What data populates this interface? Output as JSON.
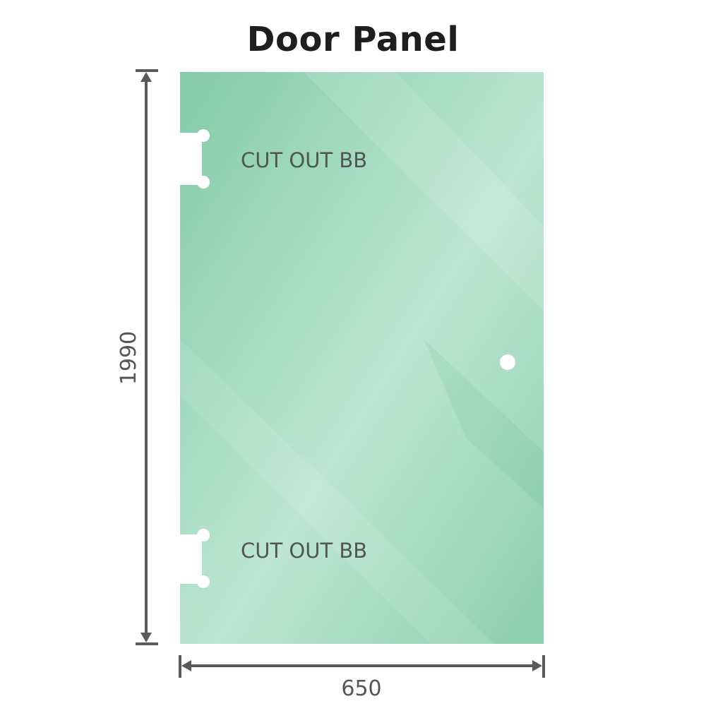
{
  "title": "Door Panel",
  "panel": {
    "color_top": "#83cba6",
    "color_mid": "#bde6d3",
    "color_bottom": "#8ccfab",
    "cutout_labels": [
      "CUT OUT BB",
      "CUT OUT BB"
    ]
  },
  "dimensions": {
    "height": "1990",
    "width": "650",
    "line_color": "#5a5a5a"
  }
}
